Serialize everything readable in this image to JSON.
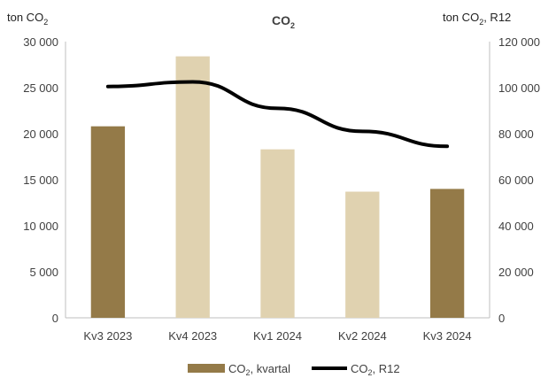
{
  "chart_data": {
    "type": "bar",
    "title": "CO",
    "title_sub": "2",
    "categories": [
      "Kv3 2023",
      "Kv4 2023",
      "Kv1 2024",
      "Kv2 2024",
      "Kv3 2024"
    ],
    "series": [
      {
        "name": "CO",
        "name_sub": "2",
        "name_suffix": ", kvartal",
        "kind": "bar",
        "axis": "left",
        "values": [
          20800,
          28400,
          18300,
          13700,
          14000
        ],
        "bar_colors": [
          "#947a48",
          "#e0d2b0",
          "#e0d2b0",
          "#e0d2b0",
          "#947a48"
        ]
      },
      {
        "name": "CO",
        "name_sub": "2",
        "name_suffix": ", R12",
        "kind": "line",
        "axis": "right",
        "color": "#000000",
        "values": [
          100500,
          102500,
          91000,
          81000,
          74500
        ]
      }
    ],
    "y_left": {
      "label": "ton CO",
      "label_sub": "2",
      "label_suffix": "",
      "range": [
        0,
        30000
      ],
      "ticks": [
        "0",
        "5 000",
        "10 000",
        "15 000",
        "20 000",
        "25 000",
        "30 000"
      ],
      "tick_values": [
        0,
        5000,
        10000,
        15000,
        20000,
        25000,
        30000
      ]
    },
    "y_right": {
      "label": "ton CO",
      "label_sub": "2",
      "label_suffix": ", R12",
      "range": [
        0,
        120000
      ],
      "ticks": [
        "0",
        "20 000",
        "40 000",
        "60 000",
        "80 000",
        "100 000",
        "120 000"
      ],
      "tick_values": [
        0,
        20000,
        40000,
        60000,
        80000,
        100000,
        120000
      ]
    },
    "grid": false,
    "legend_position": "bottom"
  }
}
